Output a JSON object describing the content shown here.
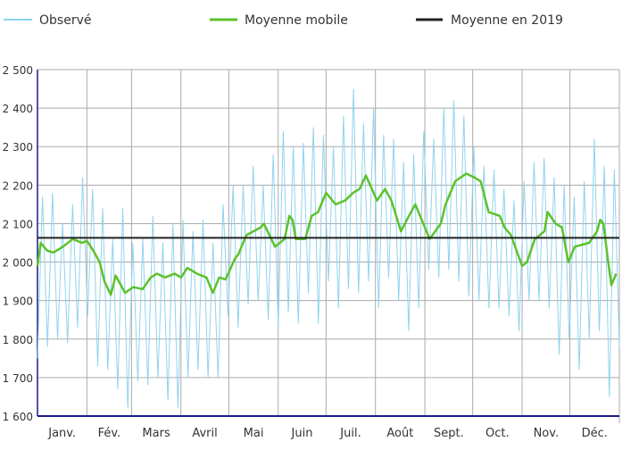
{
  "chart_data": {
    "type": "line",
    "title": "",
    "xlabel": "",
    "ylabel": "",
    "ylim": [
      1600,
      2500
    ],
    "yticks": [
      1600,
      1700,
      1800,
      1900,
      2000,
      2100,
      2200,
      2300,
      2400,
      2500
    ],
    "ytick_labels": [
      "1 600",
      "1 700",
      "1 800",
      "1 900",
      "2 000",
      "2 100",
      "2 200",
      "2 300",
      "2 400",
      "2 500"
    ],
    "xlim_days": [
      0,
      365
    ],
    "month_labels": [
      "Janv.",
      "Fév.",
      "Mars",
      "Avril",
      "Mai",
      "Juin",
      "Juil.",
      "Août",
      "Sept.",
      "Oct.",
      "Nov.",
      "Déc."
    ],
    "month_start_days": [
      0,
      31,
      59,
      90,
      120,
      151,
      181,
      212,
      243,
      273,
      304,
      334
    ],
    "grid": true,
    "legend_position": "top",
    "series": [
      {
        "name": "Observé",
        "color": "#8fd3ef",
        "values": [
          1750,
          2170,
          1780,
          2180,
          1800,
          2100,
          1790,
          2150,
          1830,
          2220,
          1860,
          2190,
          1730,
          2140,
          1720,
          2060,
          1670,
          2140,
          1620,
          2050,
          1690,
          2060,
          1680,
          2120,
          1700,
          2050,
          1640,
          2100,
          1620,
          2110,
          1700,
          2080,
          1720,
          2110,
          1700,
          2050,
          1700,
          2150,
          1860,
          2200,
          1830,
          2200,
          1890,
          2250,
          1900,
          2200,
          1850,
          2280,
          1830,
          2340,
          1870,
          2300,
          1840,
          2310,
          1920,
          2350,
          1840,
          2330,
          1950,
          2300,
          1880,
          2380,
          1930,
          2450,
          1920,
          2360,
          1950,
          2400,
          1880,
          2330,
          1960,
          2320,
          1900,
          2260,
          1820,
          2280,
          1880,
          2340,
          1980,
          2320,
          1960,
          2400,
          1980,
          2420,
          1950,
          2380,
          1910,
          2300,
          1900,
          2250,
          1880,
          2240,
          1880,
          2190,
          1860,
          2160,
          1820,
          2210,
          1900,
          2260,
          1900,
          2270,
          1880,
          2220,
          1760,
          2200,
          1800,
          2170,
          1720,
          2210,
          1800,
          2320,
          1820,
          2250,
          1650,
          2240,
          1780
        ]
      },
      {
        "name": "Moyenne mobile",
        "color": "#5cc22b",
        "points": [
          [
            0,
            1990
          ],
          [
            2,
            2050
          ],
          [
            6,
            2030
          ],
          [
            10,
            2025
          ],
          [
            16,
            2040
          ],
          [
            22,
            2060
          ],
          [
            28,
            2050
          ],
          [
            31,
            2055
          ],
          [
            35,
            2030
          ],
          [
            39,
            2000
          ],
          [
            42,
            1950
          ],
          [
            46,
            1915
          ],
          [
            49,
            1965
          ],
          [
            55,
            1920
          ],
          [
            60,
            1935
          ],
          [
            66,
            1930
          ],
          [
            71,
            1960
          ],
          [
            75,
            1970
          ],
          [
            80,
            1960
          ],
          [
            86,
            1970
          ],
          [
            90,
            1960
          ],
          [
            94,
            1985
          ],
          [
            100,
            1970
          ],
          [
            106,
            1960
          ],
          [
            110,
            1920
          ],
          [
            114,
            1960
          ],
          [
            118,
            1955
          ],
          [
            124,
            2010
          ],
          [
            126,
            2020
          ],
          [
            131,
            2070
          ],
          [
            140,
            2090
          ],
          [
            142,
            2100
          ],
          [
            149,
            2040
          ],
          [
            155,
            2060
          ],
          [
            158,
            2120
          ],
          [
            160,
            2110
          ],
          [
            162,
            2060
          ],
          [
            168,
            2060
          ],
          [
            172,
            2120
          ],
          [
            176,
            2130
          ],
          [
            181,
            2180
          ],
          [
            187,
            2150
          ],
          [
            193,
            2160
          ],
          [
            198,
            2180
          ],
          [
            202,
            2190
          ],
          [
            206,
            2225
          ],
          [
            213,
            2160
          ],
          [
            218,
            2190
          ],
          [
            222,
            2160
          ],
          [
            228,
            2080
          ],
          [
            233,
            2120
          ],
          [
            237,
            2150
          ],
          [
            240,
            2120
          ],
          [
            246,
            2060
          ],
          [
            253,
            2100
          ],
          [
            256,
            2150
          ],
          [
            262,
            2210
          ],
          [
            269,
            2230
          ],
          [
            274,
            2220
          ],
          [
            278,
            2210
          ],
          [
            283,
            2130
          ],
          [
            290,
            2120
          ],
          [
            293,
            2090
          ],
          [
            297,
            2070
          ],
          [
            304,
            1990
          ],
          [
            307,
            2000
          ],
          [
            312,
            2060
          ],
          [
            318,
            2080
          ],
          [
            320,
            2130
          ],
          [
            325,
            2100
          ],
          [
            329,
            2090
          ],
          [
            333,
            2000
          ],
          [
            337,
            2040
          ],
          [
            346,
            2050
          ],
          [
            351,
            2080
          ],
          [
            353,
            2110
          ],
          [
            355,
            2100
          ],
          [
            358,
            2000
          ],
          [
            360,
            1940
          ],
          [
            363,
            1970
          ]
        ]
      },
      {
        "name": "Moyenne en 2019",
        "color": "#222222",
        "value": 2063
      }
    ]
  }
}
